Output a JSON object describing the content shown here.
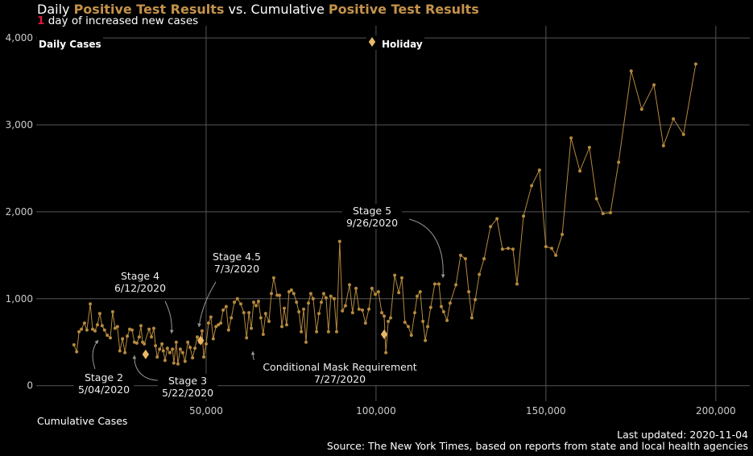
{
  "chart_data": {
    "type": "line",
    "title": [
      "Daily ",
      "Positive Test Results",
      " vs. Cumulative ",
      "Positive Test Results"
    ],
    "subtitle": {
      "count": 1,
      "text": "day of increased new cases"
    },
    "ylabel": "Daily Cases",
    "xlabel": "Cumulative Cases",
    "footer": [
      "Last updated: 2020-11-04",
      "Source: The New York Times, based on reports from state and local health agencies"
    ],
    "xlim": [
      0,
      210000
    ],
    "ylim": [
      -290,
      4140
    ],
    "xticks": [
      {
        "value": 50000,
        "label": "50,000"
      },
      {
        "value": 100000,
        "label": "100,000"
      },
      {
        "value": 150000,
        "label": "150,000"
      },
      {
        "value": 200000,
        "label": "200,000"
      }
    ],
    "yticks": [
      0,
      {
        "value": 1000,
        "label": "1,000"
      },
      {
        "value": 2000,
        "label": "2,000"
      },
      {
        "value": 3000,
        "label": "3,000"
      },
      {
        "value": 4000,
        "label": "4,000"
      }
    ],
    "grid": true,
    "series": [
      {
        "color": "#b5893e",
        "x": [
          11100,
          11900,
          12600,
          13300,
          14200,
          14900,
          15900,
          16600,
          17300,
          18000,
          18700,
          19400,
          20100,
          20900,
          21800,
          22500,
          23200,
          23900,
          24600,
          25400,
          26100,
          26800,
          27500,
          28200,
          28900,
          29600,
          30300,
          30800,
          31300,
          31800,
          33200,
          33900,
          34600,
          35100,
          35600,
          36300,
          37000,
          37400,
          37900,
          38600,
          39300,
          40100,
          40500,
          41200,
          41700,
          42400,
          43100,
          43800,
          44600,
          45300,
          46000,
          46700,
          47400,
          48100,
          48800,
          49300,
          50000,
          50700,
          51400,
          52100,
          52900,
          53600,
          54300,
          55000,
          55900,
          56600,
          57400,
          58300,
          59200,
          60200,
          61100,
          61900,
          62600,
          63300,
          64000,
          64700,
          65400,
          66100,
          66800,
          67500,
          68500,
          69200,
          69900,
          70900,
          71600,
          72300,
          73000,
          73700,
          74400,
          75100,
          75800,
          76600,
          77300,
          78000,
          78700,
          79400,
          80100,
          80800,
          81500,
          82500,
          83200,
          83900,
          84600,
          85300,
          86000,
          86700,
          87700,
          88400,
          89300,
          90100,
          91000,
          92200,
          93100,
          94100,
          95000,
          96000,
          96900,
          97900,
          98800,
          99800,
          100700,
          101700,
          102400,
          102900,
          103600,
          104300,
          105500,
          106700,
          107600,
          108500,
          109500,
          110400,
          111400,
          112100,
          113000,
          113800,
          114500,
          115200,
          116100,
          117300,
          118500,
          119200,
          119900,
          120900,
          121800,
          123500,
          124900,
          126300,
          127300,
          128200,
          129200,
          130400,
          131800,
          133700,
          135600,
          137200,
          138900,
          140300,
          141500,
          143400,
          145800,
          148100,
          150000,
          151700,
          152900,
          154800,
          157400,
          160000,
          162800,
          164900,
          166800,
          169000,
          171400,
          175100,
          178200,
          181800,
          184600,
          187500,
          190500,
          194100
        ],
        "values": [
          470,
          390,
          620,
          650,
          720,
          640,
          940,
          650,
          630,
          700,
          830,
          690,
          640,
          580,
          550,
          850,
          660,
          680,
          400,
          540,
          380,
          570,
          650,
          640,
          500,
          490,
          560,
          690,
          500,
          480,
          650,
          560,
          660,
          460,
          330,
          420,
          480,
          400,
          290,
          430,
          380,
          420,
          260,
          500,
          250,
          420,
          380,
          280,
          500,
          440,
          320,
          430,
          560,
          500,
          630,
          330,
          480,
          720,
          790,
          540,
          680,
          700,
          720,
          870,
          910,
          640,
          780,
          960,
          1000,
          940,
          840,
          550,
          840,
          660,
          960,
          920,
          970,
          780,
          590,
          830,
          740,
          1060,
          1240,
          1040,
          1040,
          680,
          890,
          700,
          1080,
          1100,
          1060,
          960,
          850,
          620,
          880,
          500,
          950,
          1060,
          1000,
          620,
          830,
          960,
          1060,
          1010,
          620,
          1030,
          1000,
          620,
          1660,
          860,
          920,
          1160,
          840,
          1120,
          880,
          870,
          720,
          880,
          1120,
          1050,
          1080,
          840,
          800,
          380,
          740,
          780,
          1270,
          1070,
          1240,
          730,
          680,
          580,
          840,
          1030,
          1080,
          740,
          520,
          680,
          900,
          1170,
          1170,
          910,
          850,
          750,
          950,
          1160,
          1500,
          1460,
          1080,
          780,
          990,
          1280,
          1460,
          1830,
          1920,
          1570,
          1580,
          1570,
          1170,
          1950,
          2300,
          2480,
          1600,
          1580,
          1500,
          1740,
          2850,
          2470,
          2740,
          2150,
          1980,
          1990,
          2570,
          3620,
          3180,
          3460,
          2760,
          3070,
          2890,
          3700
        ]
      }
    ],
    "holidays": {
      "name": "Holiday",
      "color": "#e8b866",
      "x": [
        32200,
        48400,
        102400
      ],
      "values": [
        360,
        520,
        590
      ]
    },
    "annotations": [
      {
        "label": "Stage 2",
        "date": "5/04/2020"
      },
      {
        "label": "Stage 3",
        "date": "5/22/2020"
      },
      {
        "label": "Stage 4",
        "date": "6/12/2020"
      },
      {
        "label": "Stage 4.5",
        "date": "7/3/2020"
      },
      {
        "label": "Stage 5",
        "date": "9/26/2020"
      },
      {
        "label": "Conditional Mask Requirement",
        "date": "7/27/2020"
      }
    ]
  }
}
